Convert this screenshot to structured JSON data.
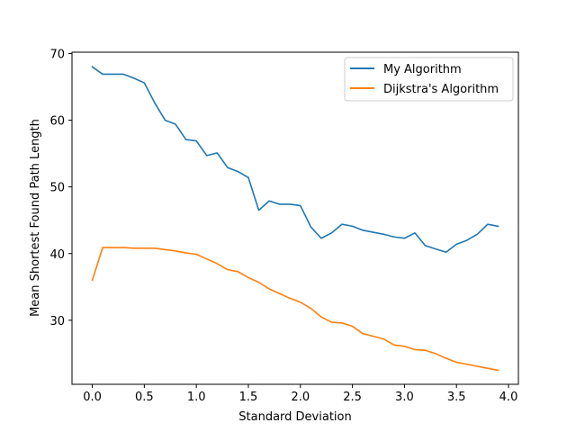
{
  "chart_data": {
    "type": "line",
    "title": "",
    "xlabel": "Standard Deviation",
    "ylabel": "Mean Shortest Found Path Length",
    "xlim": [
      -0.195,
      4.095
    ],
    "ylim": [
      20.4,
      70.2
    ],
    "xticks": [
      0.0,
      0.5,
      1.0,
      1.5,
      2.0,
      2.5,
      3.0,
      3.5,
      4.0
    ],
    "xtick_labels": [
      "0.0",
      "0.5",
      "1.0",
      "1.5",
      "2.0",
      "2.5",
      "3.0",
      "3.5",
      "4.0"
    ],
    "yticks": [
      30,
      40,
      50,
      60,
      70
    ],
    "ytick_labels": [
      "30",
      "40",
      "50",
      "60",
      "70"
    ],
    "grid": false,
    "legend_position": "top-right",
    "x": [
      0.0,
      0.1,
      0.2,
      0.3,
      0.4,
      0.5,
      0.6,
      0.7,
      0.8,
      0.9,
      1.0,
      1.1,
      1.2,
      1.3,
      1.4,
      1.5,
      1.6,
      1.7,
      1.8,
      1.9,
      2.0,
      2.1,
      2.2,
      2.3,
      2.4,
      2.5,
      2.6,
      2.7,
      2.8,
      2.9,
      3.0,
      3.1,
      3.2,
      3.3,
      3.4,
      3.5,
      3.6,
      3.7,
      3.8,
      3.9
    ],
    "series": [
      {
        "name": "My Algorithm",
        "color": "#1f77b4",
        "values": [
          68.0,
          66.9,
          66.9,
          66.9,
          66.3,
          65.6,
          62.6,
          60.0,
          59.4,
          57.1,
          56.9,
          54.7,
          55.1,
          52.9,
          52.3,
          51.4,
          46.5,
          47.9,
          47.4,
          47.4,
          47.2,
          44.0,
          42.3,
          43.1,
          44.4,
          44.1,
          43.5,
          43.2,
          42.9,
          42.5,
          42.3,
          43.1,
          41.2,
          40.7,
          40.2,
          41.4,
          42.0,
          42.9,
          44.4,
          44.1
        ]
      },
      {
        "name": "Dijkstra's Algorithm",
        "color": "#ff7f0e",
        "values": [
          36.0,
          40.9,
          40.9,
          40.9,
          40.8,
          40.8,
          40.8,
          40.6,
          40.4,
          40.1,
          39.9,
          39.2,
          38.5,
          37.6,
          37.3,
          36.4,
          35.7,
          34.7,
          34.0,
          33.3,
          32.7,
          31.8,
          30.5,
          29.7,
          29.6,
          29.1,
          28.0,
          27.6,
          27.2,
          26.3,
          26.1,
          25.6,
          25.5,
          25.0,
          24.3,
          23.7,
          23.4,
          23.1,
          22.8,
          22.5
        ]
      }
    ]
  }
}
